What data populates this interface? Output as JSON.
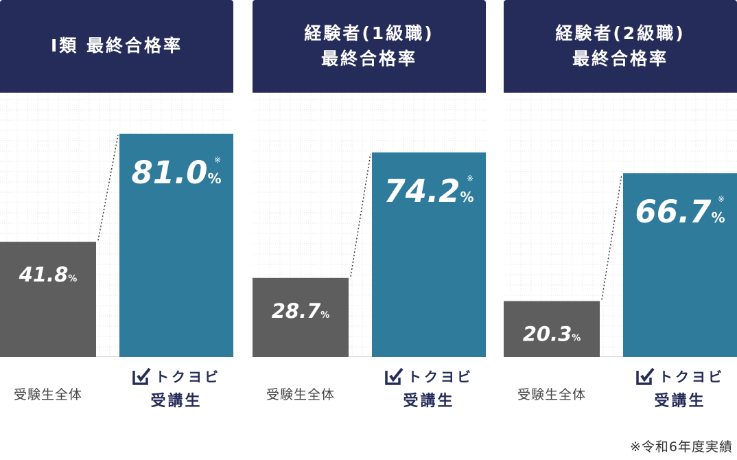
{
  "colors": {
    "header_bg": "#262c5a",
    "bar_all": "#5e5e5e",
    "bar_brand": "#2e7b9c",
    "brand_text": "#262c5a"
  },
  "brand": {
    "name": "トクヨビ",
    "sub": "受講生",
    "icon": "checkbox-pen-icon"
  },
  "label_all": "受験生全体",
  "footnote": "※令和6年度実績",
  "chart_data": [
    {
      "type": "bar",
      "title_lines": [
        "Ⅰ類 最終合格率"
      ],
      "categories": [
        "受験生全体",
        "トクヨビ受講生"
      ],
      "values": [
        41.8,
        81.0
      ],
      "value_labels": [
        "41.8",
        "81.0"
      ],
      "unit": "%",
      "note_mark": "※",
      "ylim": [
        0,
        100
      ]
    },
    {
      "type": "bar",
      "title_lines": [
        "経験者(1級職)",
        "最終合格率"
      ],
      "categories": [
        "受験生全体",
        "トクヨビ受講生"
      ],
      "values": [
        28.7,
        74.2
      ],
      "value_labels": [
        "28.7",
        "74.2"
      ],
      "unit": "%",
      "note_mark": "※",
      "ylim": [
        0,
        100
      ]
    },
    {
      "type": "bar",
      "title_lines": [
        "経験者(2級職)",
        "最終合格率"
      ],
      "categories": [
        "受験生全体",
        "トクヨビ受講生"
      ],
      "values": [
        20.3,
        66.7
      ],
      "value_labels": [
        "20.3",
        "66.7"
      ],
      "unit": "%",
      "note_mark": "※",
      "ylim": [
        0,
        100
      ]
    }
  ]
}
